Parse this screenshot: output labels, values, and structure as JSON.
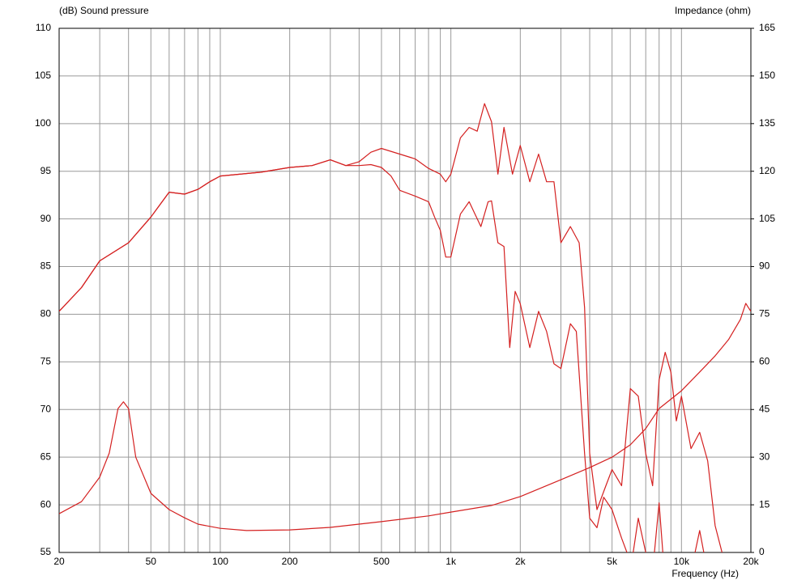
{
  "chart_data": {
    "type": "line",
    "ylabel": "(dB)  Sound pressure",
    "y2label": "Impedance  (ohm)",
    "xlabel": "Frequency  (Hz)",
    "xscale": "log",
    "xlim": [
      20,
      20000
    ],
    "xticks": [
      20,
      50,
      100,
      200,
      500,
      {
        "value": 1000,
        "label": "1k"
      },
      {
        "value": 2000,
        "label": "2k"
      },
      {
        "value": 5000,
        "label": "5k"
      },
      {
        "value": 10000,
        "label": "10k"
      },
      {
        "value": 20000,
        "label": "20k"
      }
    ],
    "xgrid": [
      20,
      30,
      40,
      50,
      60,
      70,
      80,
      90,
      100,
      200,
      300,
      400,
      500,
      600,
      700,
      800,
      900,
      1000,
      2000,
      3000,
      4000,
      5000,
      6000,
      7000,
      8000,
      9000,
      10000,
      20000
    ],
    "ylim": [
      55,
      110
    ],
    "yticks": [
      55,
      60,
      65,
      70,
      75,
      80,
      85,
      90,
      95,
      100,
      105,
      110
    ],
    "y2lim": [
      0,
      165
    ],
    "y2ticks": [
      0,
      15,
      30,
      45,
      60,
      75,
      90,
      105,
      120,
      135,
      150,
      165
    ],
    "grid": true,
    "series": [
      {
        "color": "#d42020",
        "x": [
          20,
          25,
          30,
          40,
          50,
          60,
          70,
          80,
          90,
          100,
          150,
          200,
          250,
          300,
          350,
          400,
          450,
          500,
          600,
          700,
          800,
          900,
          950,
          1000,
          1100,
          1200,
          1300,
          1400,
          1500,
          1600,
          1700,
          1850,
          2000,
          2200,
          2400,
          2600,
          2800,
          3000,
          3300,
          3600,
          3800,
          4000,
          4300,
          4700,
          5000,
          5500,
          6000,
          6500,
          7000,
          7500,
          8000,
          8500,
          9000,
          9500,
          10000,
          11000,
          12000,
          13000,
          14000,
          15000
        ],
        "values": [
          80.3,
          82.8,
          85.6,
          87.5,
          90.2,
          92.8,
          92.6,
          93.1,
          93.9,
          94.5,
          94.9,
          95.4,
          95.6,
          96.2,
          95.6,
          96.0,
          97.0,
          97.4,
          96.8,
          96.3,
          95.3,
          94.7,
          93.9,
          94.7,
          98.5,
          99.6,
          99.2,
          102.1,
          100.2,
          94.7,
          99.6,
          94.7,
          97.7,
          93.9,
          96.8,
          93.9,
          93.9,
          87.5,
          89.2,
          87.5,
          80.7,
          65.4,
          59.5,
          62.0,
          63.7,
          62.0,
          72.2,
          71.4,
          65.4,
          62.0,
          73.1,
          76.0,
          73.9,
          68.8,
          71.4,
          65.9,
          67.6,
          64.6,
          57.8,
          55.0
        ]
      },
      {
        "color": "#d42020",
        "x": [
          20,
          25,
          30,
          40,
          50,
          60,
          70,
          80,
          90,
          100,
          150,
          200,
          250,
          300,
          350,
          400,
          450,
          500,
          550,
          600,
          700,
          800,
          850,
          900,
          950,
          1000,
          1100,
          1200,
          1350,
          1450,
          1500,
          1600,
          1700,
          1800,
          1900,
          2000,
          2200,
          2400,
          2600,
          2800,
          3000,
          3300,
          3500,
          3800,
          4000,
          4300,
          4600,
          5000,
          5500,
          5800,
          6000,
          6500,
          7000,
          7500,
          8000,
          8300,
          9000,
          10000,
          11000,
          12000,
          12500
        ],
        "values": [
          80.3,
          82.8,
          85.6,
          87.5,
          90.2,
          92.8,
          92.6,
          93.1,
          93.9,
          94.5,
          94.9,
          95.4,
          95.6,
          96.2,
          95.6,
          95.6,
          95.7,
          95.4,
          94.5,
          93.0,
          92.4,
          91.8,
          90.2,
          88.8,
          86.0,
          86.0,
          90.5,
          91.8,
          89.2,
          91.8,
          91.9,
          87.5,
          87.1,
          76.5,
          82.4,
          81.1,
          76.5,
          80.3,
          78.2,
          74.8,
          74.3,
          79.0,
          78.2,
          65.4,
          58.6,
          57.6,
          60.8,
          59.5,
          56.5,
          55.0,
          53.0,
          58.6,
          55.0,
          53.0,
          60.2,
          55.0,
          52.0,
          52.0,
          53.0,
          57.3,
          55.0
        ]
      },
      {
        "color": "#d42020",
        "axis": "y2",
        "x": [
          20,
          25,
          30,
          33,
          36,
          38,
          40,
          43,
          50,
          60,
          70,
          80,
          100,
          130,
          200,
          300,
          500,
          800,
          1000,
          1500,
          2000,
          3000,
          4000,
          5000,
          6000,
          7000,
          8000,
          10000,
          12000,
          14000,
          16000,
          18000,
          19000,
          19500,
          20000
        ],
        "values": [
          12.2,
          16.0,
          23.7,
          31.3,
          45.3,
          47.4,
          45.3,
          30.0,
          18.6,
          13.5,
          10.9,
          8.9,
          7.6,
          6.9,
          7.1,
          7.9,
          9.7,
          11.5,
          12.7,
          14.8,
          17.6,
          22.9,
          26.7,
          30.0,
          33.9,
          39.0,
          45.3,
          50.9,
          56.8,
          61.9,
          67.0,
          73.3,
          78.4,
          77.1,
          75.9
        ]
      }
    ]
  }
}
